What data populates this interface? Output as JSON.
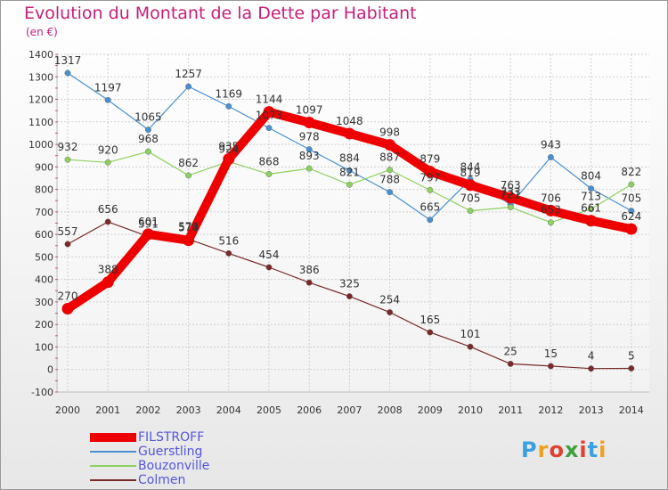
{
  "chart": {
    "title": "Evolution du Montant de la Dette par Habitant",
    "subtitle": "(en €)"
  },
  "logo": {
    "text": "Proxiti",
    "letters": [
      "P",
      "r",
      "o",
      "x",
      "i",
      "t",
      "i"
    ],
    "colors": [
      "#3aa0e0",
      "#f0a020",
      "#e04030",
      "#40a040",
      "#e04030",
      "#3aa0e0",
      "#f0a020"
    ]
  },
  "chart_data": {
    "type": "line",
    "title": "Evolution du Montant de la Dette par Habitant",
    "subtitle": "(en €)",
    "xlabel": "",
    "ylabel": "",
    "x": [
      "2000",
      "2001",
      "2002",
      "2003",
      "2004",
      "2005",
      "2006",
      "2007",
      "2008",
      "2009",
      "2010",
      "2011",
      "2012",
      "2013",
      "2014"
    ],
    "ylim": [
      -100,
      1400
    ],
    "yticks": [
      -100,
      0,
      100,
      200,
      300,
      400,
      500,
      600,
      700,
      800,
      900,
      1000,
      1100,
      1200,
      1300,
      1400
    ],
    "grid": true,
    "legend_position": "bottom-left",
    "series": [
      {
        "name": "FILSTROFF",
        "color": "#ee0000",
        "emphasis": "thick",
        "values": [
          270,
          388,
          601,
          574,
          935,
          1144,
          1097,
          1048,
          998,
          879,
          819,
          763,
          706,
          661,
          624
        ],
        "labels": [
          "270",
          "388",
          "601",
          "574",
          "935",
          "1144",
          "1097",
          "1048",
          "998",
          "879",
          "819",
          "763",
          "706",
          "661",
          "624"
        ]
      },
      {
        "name": "Guerstling",
        "color": "#4a90d0",
        "values": [
          1317,
          1197,
          1065,
          1257,
          1169,
          1073,
          978,
          884,
          788,
          665,
          844,
          733,
          943,
          804,
          705
        ],
        "labels": [
          "1317",
          "1197",
          "1065",
          "1257",
          "1169",
          "1073",
          "978",
          "884",
          "788",
          "665",
          "844",
          "733",
          "943",
          "804",
          "705"
        ]
      },
      {
        "name": "Bouzonville",
        "color": "#8fd060",
        "values": [
          932,
          920,
          968,
          862,
          924,
          868,
          893,
          821,
          887,
          797,
          705,
          721,
          653,
          713,
          822
        ],
        "labels": [
          "932",
          "920",
          "968",
          "862",
          "924",
          "868",
          "893",
          "821",
          "887",
          "797",
          "705",
          "721",
          "653",
          "713",
          "822"
        ]
      },
      {
        "name": "Colmen",
        "color": "#7a2a2a",
        "values": [
          557,
          656,
          591,
          579,
          516,
          454,
          386,
          325,
          254,
          165,
          101,
          25,
          15,
          4,
          5
        ],
        "labels": [
          "557",
          "656",
          "591",
          "579",
          "516",
          "454",
          "386",
          "325",
          "254",
          "165",
          "101",
          "25",
          "15",
          "4",
          "5"
        ]
      }
    ]
  }
}
